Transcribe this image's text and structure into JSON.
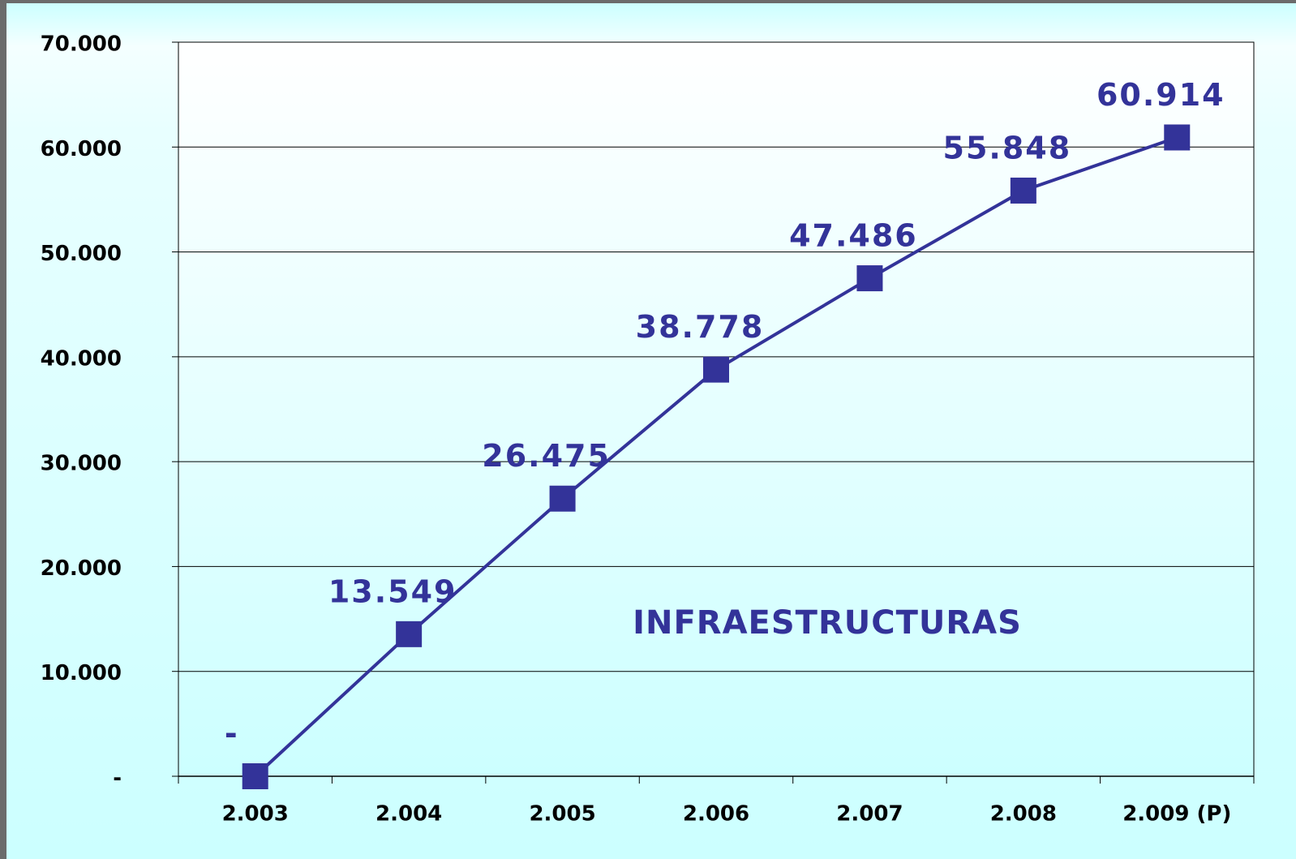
{
  "chart_data": {
    "type": "line",
    "annotation": "INFRAESTRUCTURAS",
    "categories": [
      "2.003",
      "2.004",
      "2.005",
      "2.006",
      "2.007",
      "2.008",
      "2.009 (P)"
    ],
    "series": [
      {
        "name": "Infraestructuras",
        "color": "#333399",
        "values": [
          0,
          13549,
          26475,
          38778,
          47486,
          55848,
          60914
        ],
        "value_labels": [
          "-",
          "13.549",
          "26.475",
          "38.778",
          "47.486",
          "55.848",
          "60.914"
        ]
      }
    ],
    "ylim": [
      0,
      70000
    ],
    "yticks": [
      {
        "value": 0,
        "label": "-"
      },
      {
        "value": 10000,
        "label": "10.000"
      },
      {
        "value": 20000,
        "label": "20.000"
      },
      {
        "value": 30000,
        "label": "30.000"
      },
      {
        "value": 40000,
        "label": "40.000"
      },
      {
        "value": 50000,
        "label": "50.000"
      },
      {
        "value": 60000,
        "label": "60.000"
      },
      {
        "value": 70000,
        "label": "70.000"
      }
    ],
    "grid": true
  }
}
